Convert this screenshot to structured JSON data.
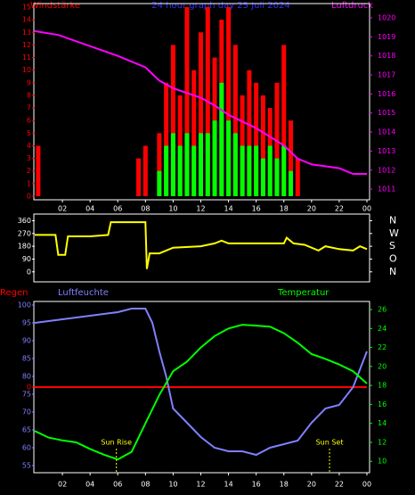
{
  "chart_data": [
    {
      "type": "bar",
      "title": "24 hour graph day  25 Juli 2024",
      "y_label": "Windstärke",
      "y2_label": "Luftdruck",
      "xlim": [
        0,
        24
      ],
      "xticks": [
        {
          "value": 2,
          "label": "02"
        },
        {
          "value": 4,
          "label": "04"
        },
        {
          "value": 6,
          "label": "06"
        },
        {
          "value": 8,
          "label": "08"
        },
        10,
        12,
        14,
        16,
        18,
        20,
        22,
        {
          "value": 24,
          "label": "00"
        }
      ],
      "ylim": [
        0,
        15
      ],
      "yticks": [
        0,
        1,
        2,
        3,
        4,
        5,
        6,
        7,
        8,
        9,
        10,
        11,
        12,
        13,
        14,
        15
      ],
      "y_color": "#ff0000",
      "y2lim": [
        1010.63,
        1020.56
      ],
      "y2ticks": [
        1011,
        1012,
        1013,
        1014,
        1015,
        1016,
        1017,
        1018,
        1019,
        1020
      ],
      "y2_color": "#ff00ff",
      "series": [
        {
          "type": "bar",
          "color": "#ff0000",
          "x": [
            0.25,
            7.5,
            8,
            8.5,
            9,
            9.5,
            10,
            10.5,
            11,
            11.5,
            12,
            12.5,
            13,
            13.5,
            14,
            14.5,
            15,
            15.5,
            16,
            16.5,
            17,
            17.5,
            18,
            18.5,
            19
          ],
          "values": [
            4,
            3,
            4,
            0,
            5,
            9,
            12,
            8,
            15,
            10,
            13,
            15,
            11,
            14,
            15,
            12,
            8,
            10,
            9,
            8,
            7,
            9,
            12,
            6,
            3
          ]
        },
        {
          "type": "bar",
          "color": "#00ff00",
          "x": [
            0.25,
            7.5,
            8,
            8.5,
            9,
            9.5,
            10,
            10.5,
            11,
            11.5,
            12,
            12.5,
            13,
            13.5,
            14,
            14.5,
            15,
            15.5,
            16,
            16.5,
            17,
            17.5,
            18,
            18.5,
            19
          ],
          "values": [
            0,
            0,
            0,
            0,
            2,
            4,
            5,
            4,
            5,
            4,
            5,
            5,
            6,
            9,
            6,
            5,
            4,
            4,
            4,
            3,
            4,
            3,
            4,
            2,
            0
          ]
        },
        {
          "type": "line",
          "axis": "y2",
          "color": "#ff00ff",
          "x": [
            0,
            1.7,
            6,
            8,
            9,
            10,
            12,
            13,
            14,
            16,
            18,
            19,
            20,
            22,
            23,
            24
          ],
          "values": [
            1019.3,
            1019.1,
            1018.0,
            1017.4,
            1016.7,
            1016.3,
            1015.8,
            1015.4,
            1014.9,
            1014.2,
            1013.3,
            1012.6,
            1012.3,
            1012.1,
            1011.8,
            1011.8
          ]
        }
      ]
    },
    {
      "type": "line",
      "xlim": [
        0,
        24
      ],
      "ylim": [
        -32.7,
        381.8
      ],
      "yticks": [
        0,
        90,
        180,
        270,
        360
      ],
      "y_color": "#ffffff",
      "y2lim": [
        -32.7,
        381.8
      ],
      "y2ticks": [
        {
          "value": 360,
          "label": "N"
        },
        {
          "value": 270,
          "label": "W"
        },
        {
          "value": 180,
          "label": "S"
        },
        {
          "value": 90,
          "label": "O"
        },
        {
          "value": 0,
          "label": "N"
        }
      ],
      "y2_color": "#ffffff",
      "series": [
        {
          "type": "line",
          "color": "#ffff00",
          "x": [
            0,
            1.5,
            1.7,
            2.2,
            2.4,
            4,
            5.3,
            5.5,
            8,
            8.1,
            8.3,
            9,
            10,
            12,
            13,
            13.5,
            14,
            18,
            18.2,
            18.7,
            19.5,
            20.5,
            21,
            22,
            23,
            23.5,
            24
          ],
          "values": [
            260,
            260,
            120,
            120,
            250,
            250,
            260,
            350,
            350,
            20,
            130,
            130,
            170,
            180,
            200,
            220,
            200,
            200,
            240,
            200,
            190,
            150,
            180,
            160,
            150,
            180,
            160
          ]
        }
      ]
    },
    {
      "type": "line",
      "y3_label": "Regen",
      "y_label": "Luftfeuchte",
      "y2_label": "Temperatur",
      "xlim": [
        0,
        24
      ],
      "xticks": [
        {
          "value": 2,
          "label": "02"
        },
        {
          "value": 4,
          "label": "04"
        },
        {
          "value": 6,
          "label": "06"
        },
        {
          "value": 8,
          "label": "08"
        },
        10,
        12,
        14,
        16,
        18,
        20,
        22,
        {
          "value": 24,
          "label": "00"
        }
      ],
      "ylim": [
        53,
        101
      ],
      "yticks": [
        55,
        60,
        65,
        70,
        75,
        80,
        85,
        90,
        95,
        100
      ],
      "y_color": "#8080ff",
      "y2lim": [
        8.8,
        26.85
      ],
      "y2ticks": [
        10,
        12,
        14,
        16,
        18,
        20,
        22,
        24,
        26
      ],
      "y2_color": "#00ff00",
      "y3lim": [
        -1,
        1
      ],
      "y3ticks": [
        0
      ],
      "y3_color": "#ff0000",
      "annotations": [
        {
          "text": "Sun Rise",
          "x": 5.9
        },
        {
          "text": "Sun Set",
          "x": 21.3
        }
      ],
      "series": [
        {
          "type": "line",
          "axis": "y3",
          "color": "#ff0000",
          "x": [
            0,
            24
          ],
          "values": [
            0,
            0
          ]
        },
        {
          "type": "line",
          "color": "#8080ff",
          "x": [
            0,
            2,
            4,
            6,
            7,
            8,
            8.5,
            9,
            9.5,
            10,
            11,
            12,
            13,
            14,
            15,
            16,
            17,
            18,
            19,
            20,
            21,
            22,
            23,
            24
          ],
          "values": [
            95,
            96,
            97,
            98,
            99,
            99,
            95,
            87,
            80,
            71,
            67,
            63,
            60,
            59,
            59,
            58,
            60,
            61,
            62,
            67,
            71,
            72,
            77,
            87
          ]
        },
        {
          "type": "line",
          "axis": "y2",
          "color": "#00ff00",
          "x": [
            0,
            1,
            2,
            3,
            4,
            5,
            6,
            7,
            8,
            9,
            10,
            11,
            12,
            13,
            14,
            15,
            16,
            17,
            18,
            19,
            20,
            21,
            22,
            23,
            24
          ],
          "values": [
            13.2,
            12.5,
            12.2,
            12,
            11.3,
            10.7,
            10.2,
            11,
            14,
            17,
            19.5,
            20.5,
            22,
            23.2,
            24,
            24.4,
            24.3,
            24.2,
            23.5,
            22.5,
            21.3,
            20.8,
            20.2,
            19.5,
            18.2
          ]
        }
      ]
    }
  ]
}
